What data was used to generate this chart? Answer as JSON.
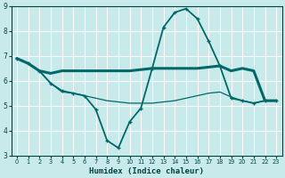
{
  "xlabel": "Humidex (Indice chaleur)",
  "background_color": "#c8eaea",
  "grid_color": "#b0d8d8",
  "line_color": "#006868",
  "xlim": [
    -0.5,
    23.5
  ],
  "ylim": [
    3,
    9
  ],
  "yticks": [
    3,
    4,
    5,
    6,
    7,
    8,
    9
  ],
  "xticks": [
    0,
    1,
    2,
    3,
    4,
    5,
    6,
    7,
    8,
    9,
    10,
    11,
    12,
    13,
    14,
    15,
    16,
    17,
    18,
    19,
    20,
    21,
    22,
    23
  ],
  "series": [
    {
      "x": [
        0,
        1,
        2,
        3,
        4,
        5,
        6,
        7,
        8,
        9,
        10,
        11,
        12,
        13,
        14,
        15,
        16,
        17,
        18,
        19,
        20,
        21,
        22,
        23
      ],
      "y": [
        6.9,
        6.7,
        6.4,
        6.3,
        6.4,
        6.4,
        6.4,
        6.4,
        6.4,
        6.4,
        6.4,
        6.45,
        6.5,
        6.5,
        6.5,
        6.5,
        6.5,
        6.55,
        6.6,
        6.4,
        6.5,
        6.4,
        5.2,
        5.2
      ],
      "lw": 2.2,
      "marker": null,
      "zorder": 3
    },
    {
      "x": [
        0,
        1,
        2,
        3,
        4,
        5,
        6,
        7,
        8,
        9,
        10,
        11,
        12,
        13,
        14,
        15,
        16,
        17,
        18,
        19,
        20,
        21,
        22,
        23
      ],
      "y": [
        6.9,
        6.7,
        6.4,
        5.9,
        5.6,
        5.5,
        5.4,
        4.85,
        3.6,
        3.3,
        4.35,
        4.9,
        6.5,
        8.15,
        8.75,
        8.9,
        8.5,
        7.6,
        6.6,
        5.3,
        5.2,
        5.1,
        5.2,
        5.2
      ],
      "lw": 1.3,
      "marker": "+",
      "zorder": 5
    },
    {
      "x": [
        0,
        1,
        2,
        3,
        4,
        5,
        6,
        7,
        8,
        9,
        10,
        11,
        12,
        13,
        14,
        15,
        16,
        17,
        18,
        19,
        20,
        21,
        22,
        23
      ],
      "y": [
        6.9,
        6.7,
        6.4,
        5.9,
        5.55,
        5.5,
        5.4,
        5.3,
        5.2,
        5.15,
        5.1,
        5.1,
        5.1,
        5.15,
        5.2,
        5.3,
        5.4,
        5.5,
        5.55,
        5.35,
        5.2,
        5.1,
        5.2,
        5.2
      ],
      "lw": 0.9,
      "marker": null,
      "zorder": 2
    }
  ]
}
